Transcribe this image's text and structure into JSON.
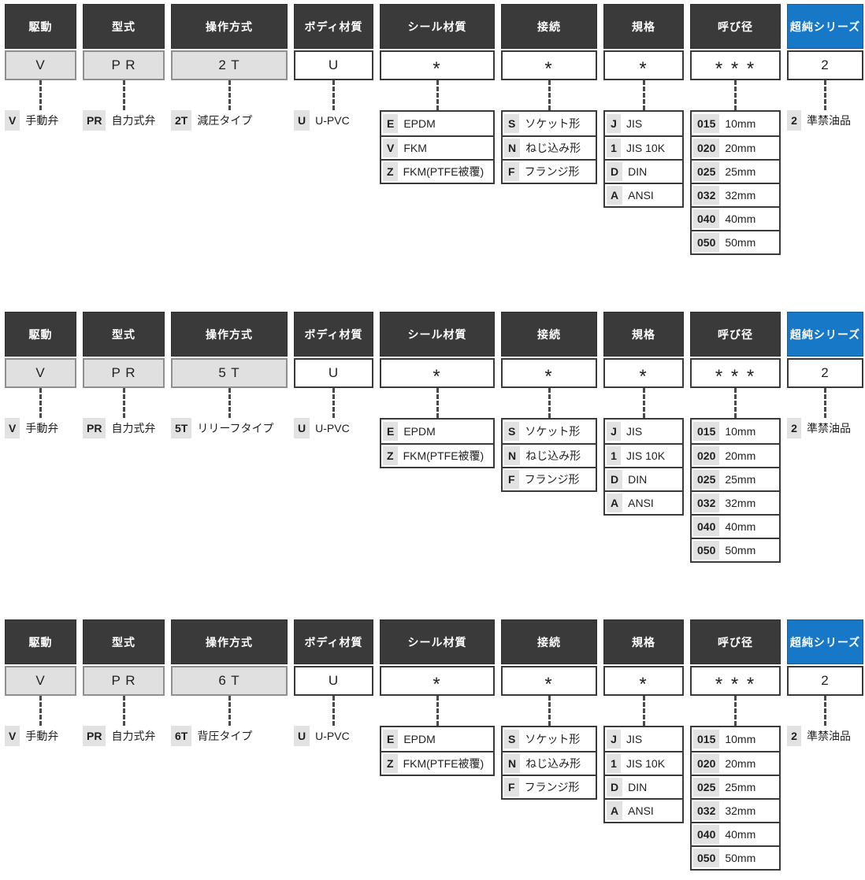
{
  "colors": {
    "header_bg": "#3a3a3a",
    "header_text": "#ffffff",
    "accent_blue": "#1878c8",
    "value_gray_bg": "#e0e0e0",
    "chip_bg": "#e2e2e2",
    "border_dark": "#3a3a3a",
    "border_gray": "#8f8f8f",
    "dash_color": "#4a4a4a",
    "text_color": "#1f1f1f"
  },
  "blocks": [
    {
      "columns": [
        {
          "header": "駆動",
          "value": "V",
          "value_style": "gray",
          "legend": {
            "code": "V",
            "label": "手動弁"
          }
        },
        {
          "header": "型式",
          "value": "P R",
          "value_style": "gray",
          "legend": {
            "code": "PR",
            "label": "自力式弁"
          }
        },
        {
          "header": "操作方式",
          "value": "2 T",
          "value_style": "gray",
          "legend": {
            "code": "2T",
            "label": "減圧タイプ"
          }
        },
        {
          "header": "ボディ材質",
          "value": "U",
          "value_style": "white",
          "legend": {
            "code": "U",
            "label": "U-PVC"
          }
        },
        {
          "header": "シール材質",
          "value": "*",
          "value_style": "white",
          "options": [
            {
              "code": "E",
              "label": "EPDM"
            },
            {
              "code": "V",
              "label": "FKM"
            },
            {
              "code": "Z",
              "label": "FKM(PTFE被覆)"
            }
          ]
        },
        {
          "header": "接続",
          "value": "*",
          "value_style": "white",
          "options": [
            {
              "code": "S",
              "label": "ソケット形"
            },
            {
              "code": "N",
              "label": "ねじ込み形"
            },
            {
              "code": "F",
              "label": "フランジ形"
            }
          ]
        },
        {
          "header": "規格",
          "value": "*",
          "value_style": "white",
          "options": [
            {
              "code": "J",
              "label": "JIS"
            },
            {
              "code": "1",
              "label": "JIS 10K"
            },
            {
              "code": "D",
              "label": "DIN"
            },
            {
              "code": "A",
              "label": "ANSI"
            }
          ]
        },
        {
          "header": "呼び径",
          "value": "* * *",
          "value_style": "white",
          "options": [
            {
              "code": "015",
              "label": "10mm"
            },
            {
              "code": "020",
              "label": "20mm"
            },
            {
              "code": "025",
              "label": "25mm"
            },
            {
              "code": "032",
              "label": "32mm"
            },
            {
              "code": "040",
              "label": "40mm"
            },
            {
              "code": "050",
              "label": "50mm"
            }
          ]
        },
        {
          "header": "超純シリーズ",
          "header_style": "blue",
          "value": "2",
          "value_style": "white",
          "legend": {
            "code": "2",
            "label": "準禁油品"
          }
        }
      ]
    },
    {
      "columns": [
        {
          "header": "駆動",
          "value": "V",
          "value_style": "gray",
          "legend": {
            "code": "V",
            "label": "手動弁"
          }
        },
        {
          "header": "型式",
          "value": "P R",
          "value_style": "gray",
          "legend": {
            "code": "PR",
            "label": "自力式弁"
          }
        },
        {
          "header": "操作方式",
          "value": "5 T",
          "value_style": "gray",
          "legend": {
            "code": "5T",
            "label": "リリーフタイプ"
          }
        },
        {
          "header": "ボディ材質",
          "value": "U",
          "value_style": "white",
          "legend": {
            "code": "U",
            "label": "U-PVC"
          }
        },
        {
          "header": "シール材質",
          "value": "*",
          "value_style": "white",
          "options": [
            {
              "code": "E",
              "label": "EPDM"
            },
            {
              "code": "Z",
              "label": "FKM(PTFE被覆)"
            }
          ]
        },
        {
          "header": "接続",
          "value": "*",
          "value_style": "white",
          "options": [
            {
              "code": "S",
              "label": "ソケット形"
            },
            {
              "code": "N",
              "label": "ねじ込み形"
            },
            {
              "code": "F",
              "label": "フランジ形"
            }
          ]
        },
        {
          "header": "規格",
          "value": "*",
          "value_style": "white",
          "options": [
            {
              "code": "J",
              "label": "JIS"
            },
            {
              "code": "1",
              "label": "JIS 10K"
            },
            {
              "code": "D",
              "label": "DIN"
            },
            {
              "code": "A",
              "label": "ANSI"
            }
          ]
        },
        {
          "header": "呼び径",
          "value": "* * *",
          "value_style": "white",
          "options": [
            {
              "code": "015",
              "label": "10mm"
            },
            {
              "code": "020",
              "label": "20mm"
            },
            {
              "code": "025",
              "label": "25mm"
            },
            {
              "code": "032",
              "label": "32mm"
            },
            {
              "code": "040",
              "label": "40mm"
            },
            {
              "code": "050",
              "label": "50mm"
            }
          ]
        },
        {
          "header": "超純シリーズ",
          "header_style": "blue",
          "value": "2",
          "value_style": "white",
          "legend": {
            "code": "2",
            "label": "準禁油品"
          }
        }
      ]
    },
    {
      "columns": [
        {
          "header": "駆動",
          "value": "V",
          "value_style": "gray",
          "legend": {
            "code": "V",
            "label": "手動弁"
          }
        },
        {
          "header": "型式",
          "value": "P R",
          "value_style": "gray",
          "legend": {
            "code": "PR",
            "label": "自力式弁"
          }
        },
        {
          "header": "操作方式",
          "value": "6 T",
          "value_style": "gray",
          "legend": {
            "code": "6T",
            "label": "背圧タイプ"
          }
        },
        {
          "header": "ボディ材質",
          "value": "U",
          "value_style": "white",
          "legend": {
            "code": "U",
            "label": "U-PVC"
          }
        },
        {
          "header": "シール材質",
          "value": "*",
          "value_style": "white",
          "options": [
            {
              "code": "E",
              "label": "EPDM"
            },
            {
              "code": "Z",
              "label": "FKM(PTFE被覆)"
            }
          ]
        },
        {
          "header": "接続",
          "value": "*",
          "value_style": "white",
          "options": [
            {
              "code": "S",
              "label": "ソケット形"
            },
            {
              "code": "N",
              "label": "ねじ込み形"
            },
            {
              "code": "F",
              "label": "フランジ形"
            }
          ]
        },
        {
          "header": "規格",
          "value": "*",
          "value_style": "white",
          "options": [
            {
              "code": "J",
              "label": "JIS"
            },
            {
              "code": "1",
              "label": "JIS 10K"
            },
            {
              "code": "D",
              "label": "DIN"
            },
            {
              "code": "A",
              "label": "ANSI"
            }
          ]
        },
        {
          "header": "呼び径",
          "value": "* * *",
          "value_style": "white",
          "options": [
            {
              "code": "015",
              "label": "10mm"
            },
            {
              "code": "020",
              "label": "20mm"
            },
            {
              "code": "025",
              "label": "25mm"
            },
            {
              "code": "032",
              "label": "32mm"
            },
            {
              "code": "040",
              "label": "40mm"
            },
            {
              "code": "050",
              "label": "50mm"
            }
          ]
        },
        {
          "header": "超純シリーズ",
          "header_style": "blue",
          "value": "2",
          "value_style": "white",
          "legend": {
            "code": "2",
            "label": "準禁油品"
          }
        }
      ]
    }
  ]
}
